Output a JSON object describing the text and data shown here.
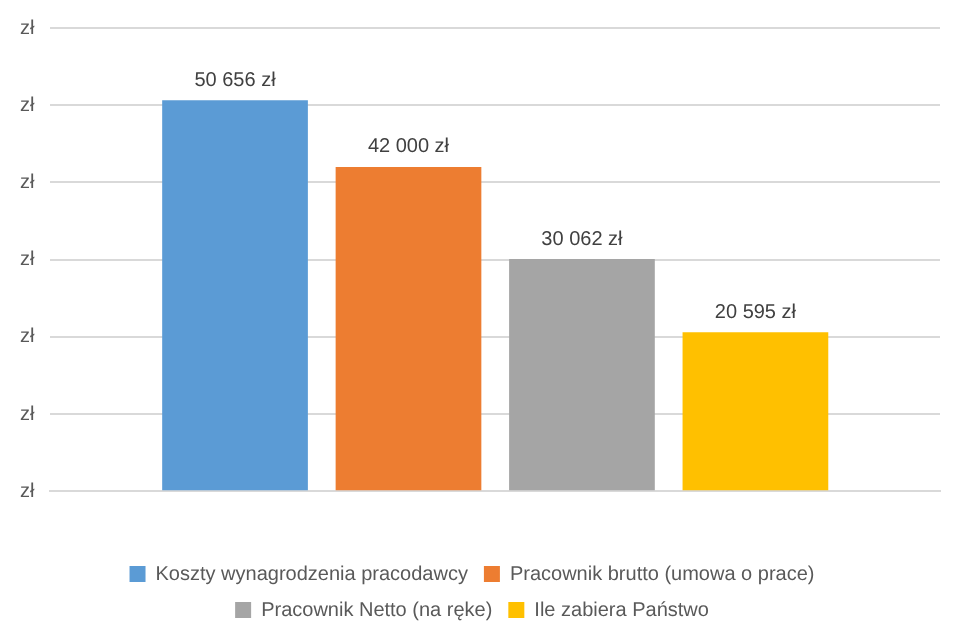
{
  "chart_data": {
    "type": "bar",
    "categories": [
      null
    ],
    "series": [
      {
        "name": "Koszty wynagrodzenia pracodawcy",
        "color": "#5b9bd5",
        "values": [
          50656
        ],
        "value_labels": [
          "50 656 zł"
        ]
      },
      {
        "name": "Pracownik brutto (umowa o prace)",
        "color": "#ed7d31",
        "values": [
          42000
        ],
        "value_labels": [
          "42 000 zł"
        ]
      },
      {
        "name": "Pracownik Netto (na ręke)",
        "color": "#a5a5a5",
        "values": [
          30062
        ],
        "value_labels": [
          "30 062 zł"
        ]
      },
      {
        "name": "Ile zabiera Państwo",
        "color": "#ffc000",
        "values": [
          20595
        ],
        "value_labels": [
          "20 595 zł"
        ]
      }
    ],
    "ylim": [
      0,
      60000
    ],
    "annotations": [
      "zł",
      "zł",
      "zł",
      "zł",
      "zł",
      "zł",
      "zł"
    ],
    "grid": "y",
    "legend": "bottom"
  }
}
